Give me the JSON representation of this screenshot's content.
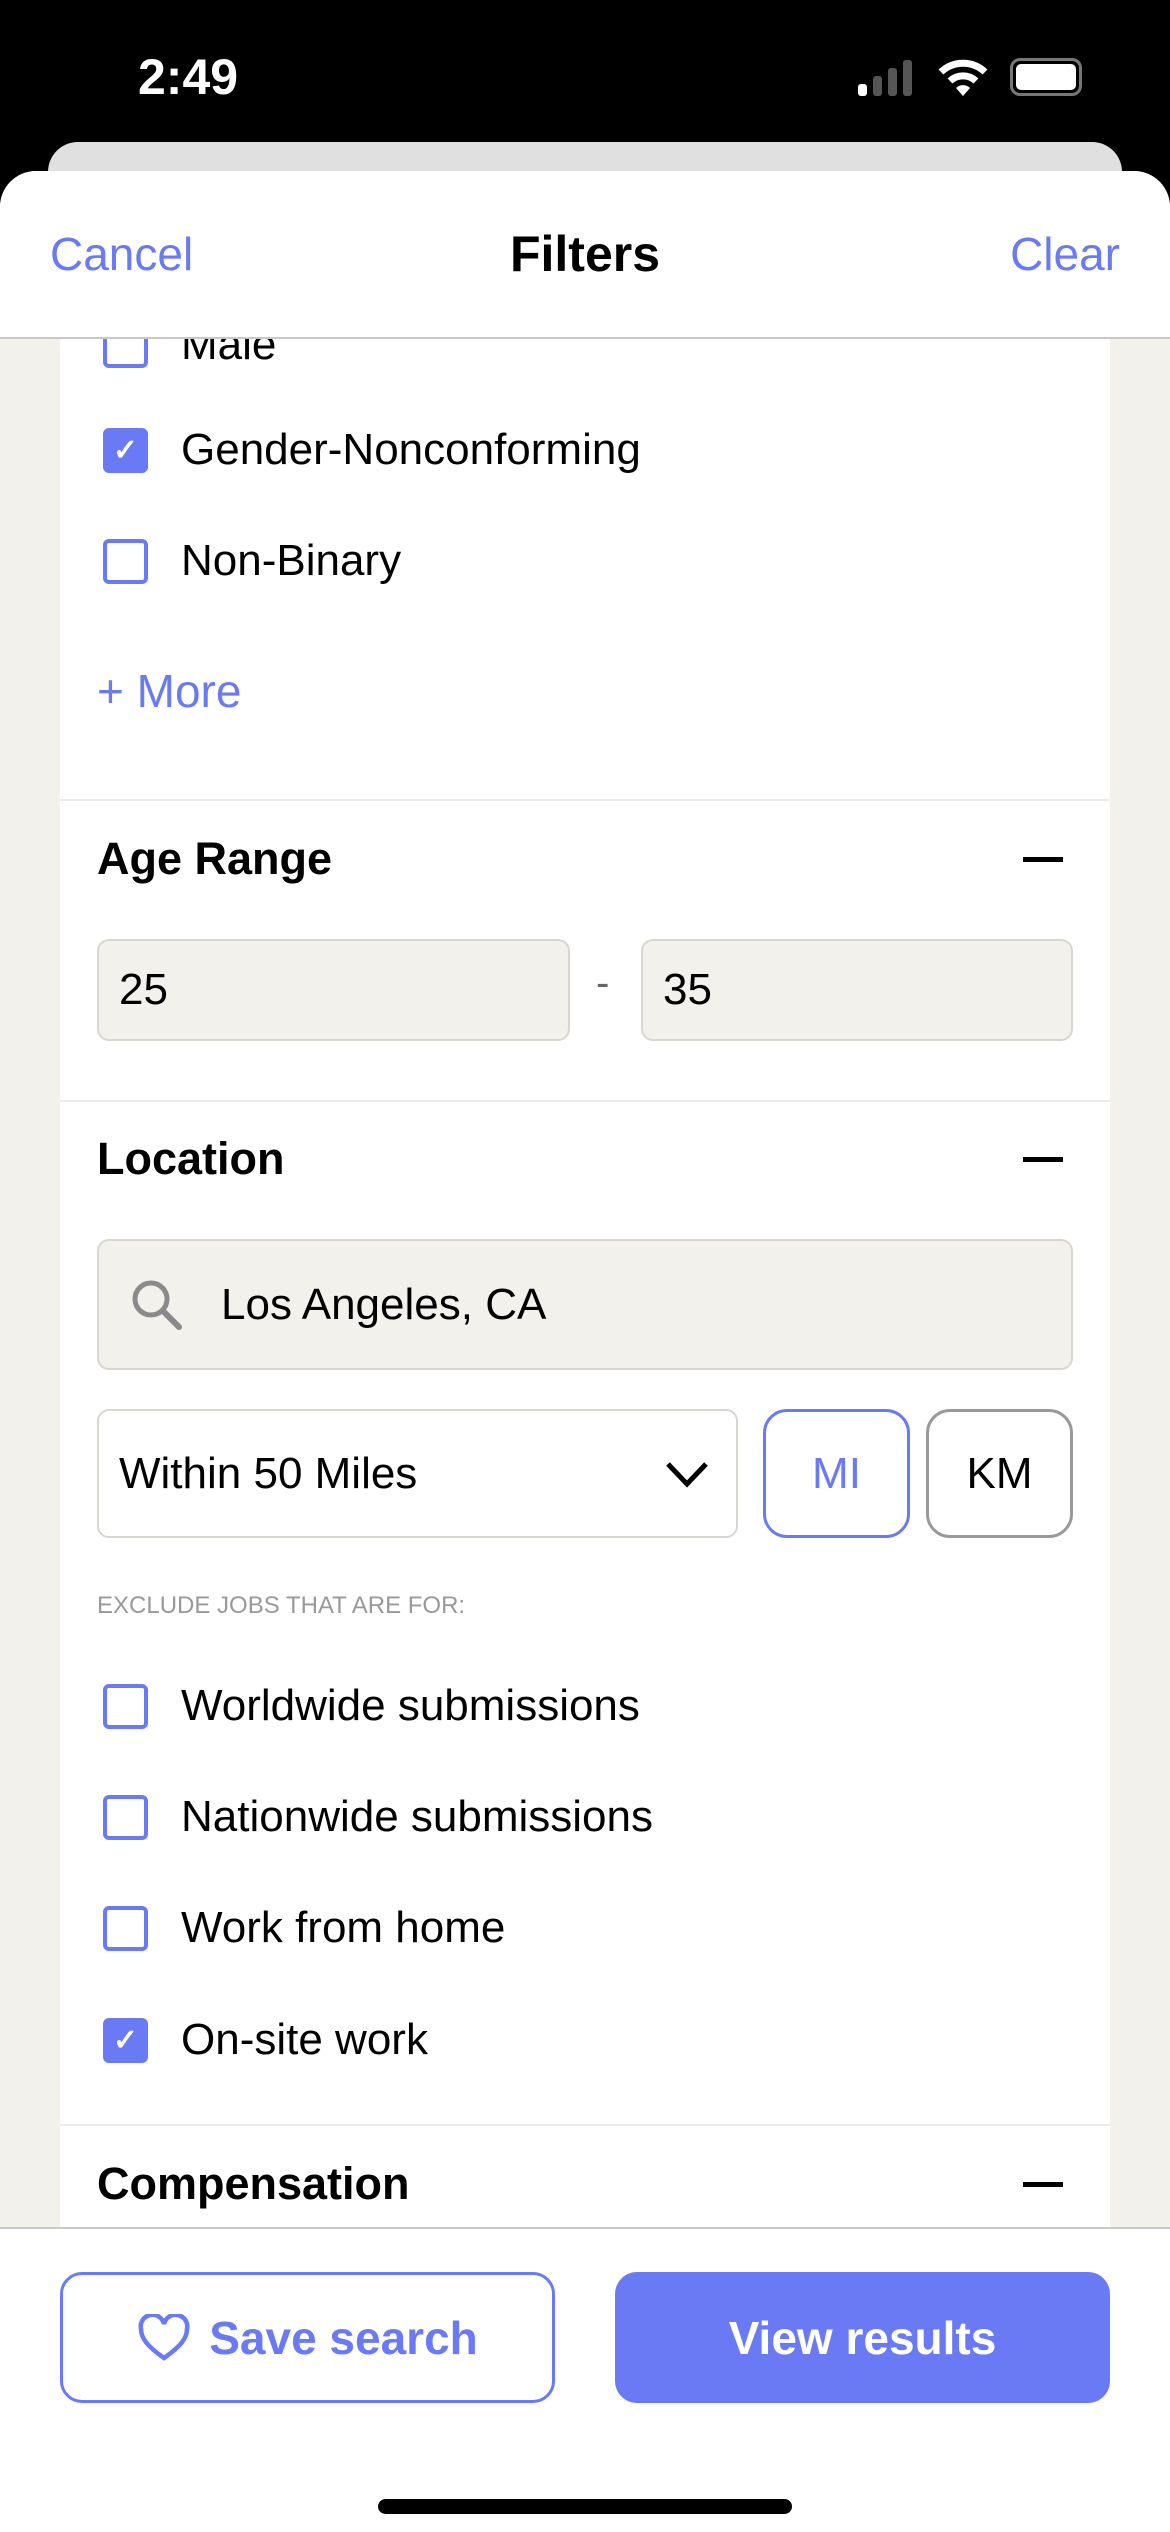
{
  "status": {
    "time": "2:49"
  },
  "header": {
    "cancel": "Cancel",
    "title": "Filters",
    "clear": "Clear"
  },
  "gender": {
    "options": [
      {
        "label": "Male",
        "checked": false
      },
      {
        "label": "Gender-Nonconforming",
        "checked": true
      },
      {
        "label": "Non-Binary",
        "checked": false
      }
    ],
    "more": "+ More"
  },
  "age": {
    "title": "Age Range",
    "min": "25",
    "separator": "-",
    "max": "35"
  },
  "location": {
    "title": "Location",
    "search_value": "Los Angeles, CA",
    "distance": "Within 50 Miles",
    "unit_mi": "MI",
    "unit_km": "KM",
    "selected_unit": "MI",
    "exclude_label": "EXCLUDE JOBS THAT ARE FOR:",
    "exclude_options": [
      {
        "label": "Worldwide submissions",
        "checked": false
      },
      {
        "label": "Nationwide submissions",
        "checked": false
      },
      {
        "label": "Work from home",
        "checked": false
      },
      {
        "label": "On-site work",
        "checked": true
      }
    ]
  },
  "compensation": {
    "title": "Compensation"
  },
  "footer": {
    "save": "Save search",
    "view": "View results"
  },
  "colors": {
    "accent": "#6a7af5",
    "background": "#f2f1ec"
  }
}
